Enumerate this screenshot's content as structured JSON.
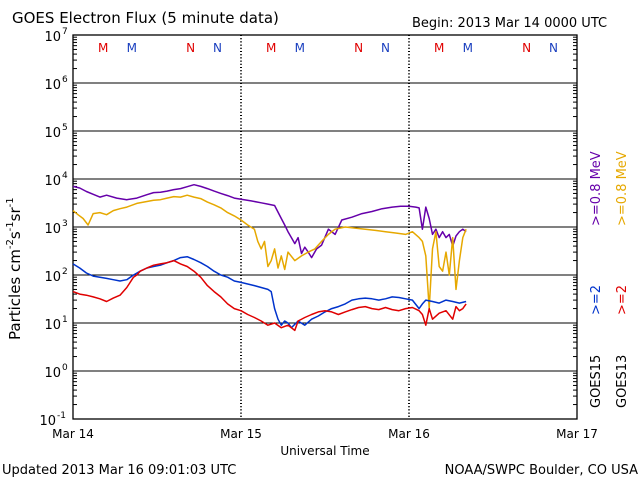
{
  "header": {
    "title": "GOES Electron Flux (5 minute data)",
    "begin": "Begin: 2013 Mar 14 0000 UTC"
  },
  "footer": {
    "updated": "Updated 2013 Mar 16 09:01:03 UTC",
    "credit": "NOAA/SWPC Boulder, CO USA"
  },
  "colors": {
    "g15_08": "#6600aa",
    "g13_08": "#e6a800",
    "g15_2": "#0033cc",
    "g13_2": "#e00000",
    "marker_m": "#e00000",
    "marker_m2": "#1a3fbf"
  },
  "chart_data": {
    "type": "line",
    "title": "GOES Electron Flux (5 minute data)",
    "xlabel": "Universal Time",
    "ylabel_parts": [
      "Particles cm",
      "-2",
      "s",
      "-1",
      "sr",
      "-1"
    ],
    "x_unit": "days since 2013 Mar 14 00:00 UTC",
    "xlim": [
      0,
      3
    ],
    "ylim_log10": [
      -1,
      7
    ],
    "y_ticks": [
      {
        "exp": 7,
        "label": "10",
        "sup": "7"
      },
      {
        "exp": 6,
        "label": "10",
        "sup": "6"
      },
      {
        "exp": 5,
        "label": "10",
        "sup": "5"
      },
      {
        "exp": 4,
        "label": "10",
        "sup": "4"
      },
      {
        "exp": 3,
        "label": "10",
        "sup": "3"
      },
      {
        "exp": 2,
        "label": "10",
        "sup": "2"
      },
      {
        "exp": 1,
        "label": "10",
        "sup": "1"
      },
      {
        "exp": 0,
        "label": "10",
        "sup": "0"
      },
      {
        "exp": -1,
        "label": "10",
        "sup": "-1"
      }
    ],
    "x_ticks": [
      {
        "x": 0,
        "label": "Mar 14"
      },
      {
        "x": 1,
        "label": "Mar 15"
      },
      {
        "x": 2,
        "label": "Mar 16"
      },
      {
        "x": 3,
        "label": "Mar 17"
      }
    ],
    "threshold": {
      "value": 1000,
      "style": "dashed"
    },
    "day_markers": [
      {
        "label": "M",
        "x": 0.18,
        "color": "#e00000"
      },
      {
        "label": "M",
        "x": 0.35,
        "color": "#1a3fbf"
      },
      {
        "label": "N",
        "x": 0.7,
        "color": "#e00000"
      },
      {
        "label": "N",
        "x": 0.86,
        "color": "#1a3fbf"
      },
      {
        "label": "M",
        "x": 1.18,
        "color": "#e00000"
      },
      {
        "label": "M",
        "x": 1.35,
        "color": "#1a3fbf"
      },
      {
        "label": "N",
        "x": 1.7,
        "color": "#e00000"
      },
      {
        "label": "N",
        "x": 1.86,
        "color": "#1a3fbf"
      },
      {
        "label": "M",
        "x": 2.18,
        "color": "#e00000"
      },
      {
        "label": "M",
        "x": 2.35,
        "color": "#1a3fbf"
      },
      {
        "label": "N",
        "x": 2.7,
        "color": "#e00000"
      },
      {
        "label": "N",
        "x": 2.86,
        "color": "#1a3fbf"
      }
    ],
    "legend": {
      "placement": "right",
      "entries": [
        {
          "label": ">=0.8 MeV",
          "color": "#6600aa"
        },
        {
          "label": ">=0.8 MeV",
          "color": "#e6a800"
        },
        {
          "label": ">=2",
          "color": "#0033cc"
        },
        {
          "label": ">=2",
          "color": "#e00000"
        },
        {
          "label": "GOES15",
          "color": "#000000"
        },
        {
          "label": "GOES13",
          "color": "#000000"
        }
      ]
    },
    "series": [
      {
        "name": "GOES15 >=0.8 MeV",
        "color": "#6600aa",
        "points": [
          [
            0.0,
            7000
          ],
          [
            0.04,
            6500
          ],
          [
            0.08,
            5500
          ],
          [
            0.12,
            4800
          ],
          [
            0.16,
            4200
          ],
          [
            0.2,
            4600
          ],
          [
            0.26,
            4000
          ],
          [
            0.32,
            3700
          ],
          [
            0.38,
            4000
          ],
          [
            0.44,
            4700
          ],
          [
            0.48,
            5200
          ],
          [
            0.52,
            5300
          ],
          [
            0.56,
            5600
          ],
          [
            0.6,
            6000
          ],
          [
            0.64,
            6300
          ],
          [
            0.68,
            6900
          ],
          [
            0.72,
            7600
          ],
          [
            0.76,
            7000
          ],
          [
            0.8,
            6300
          ],
          [
            0.84,
            5600
          ],
          [
            0.88,
            5000
          ],
          [
            0.92,
            4500
          ],
          [
            0.96,
            4000
          ],
          [
            1.0,
            3800
          ],
          [
            1.06,
            3500
          ],
          [
            1.12,
            3200
          ],
          [
            1.16,
            3000
          ],
          [
            1.2,
            2800
          ],
          [
            1.24,
            1500
          ],
          [
            1.26,
            1100
          ],
          [
            1.28,
            800
          ],
          [
            1.3,
            600
          ],
          [
            1.32,
            450
          ],
          [
            1.34,
            600
          ],
          [
            1.36,
            280
          ],
          [
            1.38,
            380
          ],
          [
            1.4,
            300
          ],
          [
            1.42,
            230
          ],
          [
            1.45,
            350
          ],
          [
            1.48,
            420
          ],
          [
            1.52,
            900
          ],
          [
            1.56,
            700
          ],
          [
            1.6,
            1400
          ],
          [
            1.66,
            1600
          ],
          [
            1.72,
            1900
          ],
          [
            1.78,
            2100
          ],
          [
            1.84,
            2400
          ],
          [
            1.9,
            2600
          ],
          [
            1.95,
            2700
          ],
          [
            2.0,
            2700
          ],
          [
            2.04,
            2600
          ],
          [
            2.06,
            2500
          ],
          [
            2.08,
            900
          ],
          [
            2.1,
            2600
          ],
          [
            2.12,
            1500
          ],
          [
            2.14,
            700
          ],
          [
            2.16,
            900
          ],
          [
            2.18,
            600
          ],
          [
            2.2,
            800
          ],
          [
            2.22,
            600
          ],
          [
            2.24,
            700
          ],
          [
            2.26,
            400
          ],
          [
            2.28,
            650
          ],
          [
            2.3,
            800
          ],
          [
            2.32,
            900
          ],
          [
            2.34,
            800
          ]
        ]
      },
      {
        "name": "GOES13 >=0.8 MeV",
        "color": "#e6a800",
        "points": [
          [
            0.0,
            2200
          ],
          [
            0.03,
            1800
          ],
          [
            0.06,
            1500
          ],
          [
            0.09,
            1100
          ],
          [
            0.12,
            1900
          ],
          [
            0.16,
            2000
          ],
          [
            0.2,
            1800
          ],
          [
            0.24,
            2200
          ],
          [
            0.28,
            2400
          ],
          [
            0.32,
            2600
          ],
          [
            0.38,
            3100
          ],
          [
            0.44,
            3400
          ],
          [
            0.48,
            3600
          ],
          [
            0.52,
            3700
          ],
          [
            0.56,
            4000
          ],
          [
            0.6,
            4300
          ],
          [
            0.64,
            4200
          ],
          [
            0.68,
            4600
          ],
          [
            0.72,
            4200
          ],
          [
            0.76,
            3900
          ],
          [
            0.8,
            3300
          ],
          [
            0.84,
            2900
          ],
          [
            0.88,
            2500
          ],
          [
            0.92,
            2000
          ],
          [
            0.96,
            1700
          ],
          [
            1.0,
            1400
          ],
          [
            1.04,
            1100
          ],
          [
            1.08,
            900
          ],
          [
            1.1,
            500
          ],
          [
            1.12,
            350
          ],
          [
            1.14,
            500
          ],
          [
            1.16,
            150
          ],
          [
            1.18,
            200
          ],
          [
            1.2,
            350
          ],
          [
            1.22,
            140
          ],
          [
            1.24,
            250
          ],
          [
            1.26,
            130
          ],
          [
            1.28,
            300
          ],
          [
            1.32,
            200
          ],
          [
            1.36,
            250
          ],
          [
            1.4,
            300
          ],
          [
            1.44,
            350
          ],
          [
            1.48,
            500
          ],
          [
            1.52,
            700
          ],
          [
            1.56,
            900
          ],
          [
            1.62,
            1000
          ],
          [
            1.68,
            950
          ],
          [
            1.74,
            900
          ],
          [
            1.8,
            850
          ],
          [
            1.86,
            800
          ],
          [
            1.92,
            750
          ],
          [
            1.98,
            700
          ],
          [
            2.02,
            800
          ],
          [
            2.06,
            600
          ],
          [
            2.08,
            500
          ],
          [
            2.1,
            250
          ],
          [
            2.12,
            20
          ],
          [
            2.14,
            350
          ],
          [
            2.16,
            800
          ],
          [
            2.18,
            150
          ],
          [
            2.2,
            120
          ],
          [
            2.22,
            300
          ],
          [
            2.24,
            100
          ],
          [
            2.26,
            600
          ],
          [
            2.28,
            50
          ],
          [
            2.3,
            200
          ],
          [
            2.32,
            600
          ],
          [
            2.34,
            900
          ]
        ]
      },
      {
        "name": "GOES15 >=2 MeV",
        "color": "#0033cc",
        "points": [
          [
            0.0,
            170
          ],
          [
            0.04,
            140
          ],
          [
            0.08,
            110
          ],
          [
            0.12,
            95
          ],
          [
            0.16,
            90
          ],
          [
            0.2,
            85
          ],
          [
            0.24,
            80
          ],
          [
            0.28,
            75
          ],
          [
            0.32,
            80
          ],
          [
            0.36,
            100
          ],
          [
            0.4,
            120
          ],
          [
            0.44,
            140
          ],
          [
            0.48,
            150
          ],
          [
            0.52,
            160
          ],
          [
            0.56,
            180
          ],
          [
            0.6,
            200
          ],
          [
            0.64,
            230
          ],
          [
            0.68,
            240
          ],
          [
            0.72,
            210
          ],
          [
            0.76,
            180
          ],
          [
            0.8,
            150
          ],
          [
            0.84,
            120
          ],
          [
            0.88,
            100
          ],
          [
            0.92,
            90
          ],
          [
            0.96,
            75
          ],
          [
            1.0,
            70
          ],
          [
            1.04,
            65
          ],
          [
            1.08,
            60
          ],
          [
            1.12,
            55
          ],
          [
            1.16,
            50
          ],
          [
            1.18,
            45
          ],
          [
            1.2,
            20
          ],
          [
            1.22,
            12
          ],
          [
            1.24,
            9
          ],
          [
            1.26,
            11
          ],
          [
            1.28,
            10
          ],
          [
            1.3,
            8
          ],
          [
            1.34,
            11
          ],
          [
            1.38,
            9
          ],
          [
            1.42,
            12
          ],
          [
            1.46,
            14
          ],
          [
            1.5,
            17
          ],
          [
            1.54,
            20
          ],
          [
            1.58,
            22
          ],
          [
            1.62,
            25
          ],
          [
            1.66,
            30
          ],
          [
            1.7,
            32
          ],
          [
            1.74,
            33
          ],
          [
            1.78,
            32
          ],
          [
            1.82,
            30
          ],
          [
            1.86,
            32
          ],
          [
            1.9,
            35
          ],
          [
            1.94,
            34
          ],
          [
            1.98,
            32
          ],
          [
            2.02,
            30
          ],
          [
            2.06,
            20
          ],
          [
            2.08,
            25
          ],
          [
            2.1,
            30
          ],
          [
            2.14,
            28
          ],
          [
            2.18,
            26
          ],
          [
            2.22,
            30
          ],
          [
            2.26,
            28
          ],
          [
            2.3,
            26
          ],
          [
            2.34,
            28
          ]
        ]
      },
      {
        "name": "GOES13 >=2 MeV",
        "color": "#e00000",
        "points": [
          [
            0.0,
            45
          ],
          [
            0.04,
            40
          ],
          [
            0.08,
            38
          ],
          [
            0.12,
            35
          ],
          [
            0.16,
            32
          ],
          [
            0.2,
            28
          ],
          [
            0.24,
            33
          ],
          [
            0.28,
            38
          ],
          [
            0.32,
            55
          ],
          [
            0.36,
            90
          ],
          [
            0.38,
            100
          ],
          [
            0.4,
            120
          ],
          [
            0.44,
            140
          ],
          [
            0.48,
            160
          ],
          [
            0.52,
            170
          ],
          [
            0.56,
            180
          ],
          [
            0.6,
            200
          ],
          [
            0.64,
            170
          ],
          [
            0.68,
            150
          ],
          [
            0.72,
            120
          ],
          [
            0.76,
            90
          ],
          [
            0.8,
            60
          ],
          [
            0.84,
            45
          ],
          [
            0.88,
            35
          ],
          [
            0.92,
            25
          ],
          [
            0.96,
            20
          ],
          [
            1.0,
            18
          ],
          [
            1.04,
            15
          ],
          [
            1.08,
            13
          ],
          [
            1.12,
            11
          ],
          [
            1.16,
            9
          ],
          [
            1.2,
            10
          ],
          [
            1.24,
            8
          ],
          [
            1.28,
            9
          ],
          [
            1.32,
            7
          ],
          [
            1.34,
            11
          ],
          [
            1.38,
            13
          ],
          [
            1.42,
            15
          ],
          [
            1.46,
            17
          ],
          [
            1.5,
            18
          ],
          [
            1.54,
            17
          ],
          [
            1.58,
            15
          ],
          [
            1.62,
            17
          ],
          [
            1.66,
            19
          ],
          [
            1.7,
            21
          ],
          [
            1.74,
            22
          ],
          [
            1.78,
            20
          ],
          [
            1.82,
            19
          ],
          [
            1.86,
            21
          ],
          [
            1.9,
            19
          ],
          [
            1.94,
            18
          ],
          [
            1.98,
            20
          ],
          [
            2.02,
            21
          ],
          [
            2.06,
            18
          ],
          [
            2.08,
            15
          ],
          [
            2.1,
            9
          ],
          [
            2.12,
            20
          ],
          [
            2.14,
            12
          ],
          [
            2.18,
            16
          ],
          [
            2.22,
            18
          ],
          [
            2.26,
            12
          ],
          [
            2.28,
            22
          ],
          [
            2.3,
            18
          ],
          [
            2.32,
            20
          ],
          [
            2.34,
            25
          ]
        ]
      }
    ]
  }
}
